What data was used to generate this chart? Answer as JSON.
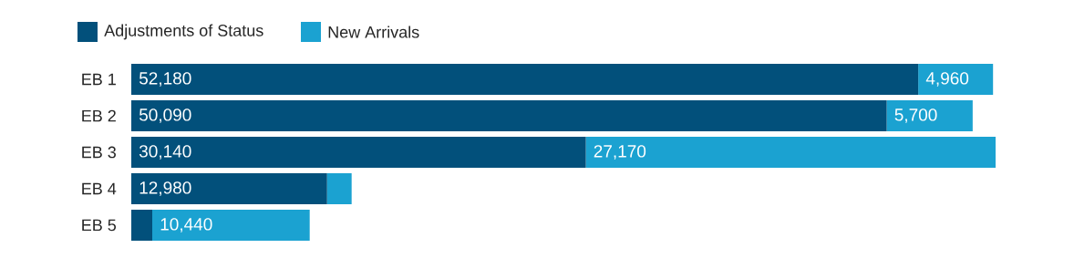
{
  "chart_data": {
    "type": "bar",
    "orientation": "horizontal",
    "stacked": true,
    "legend": "top left",
    "categories": [
      "EB 1",
      "EB 2",
      "EB 3",
      "EB 4",
      "EB 5"
    ],
    "series": [
      {
        "name": "Adjustments of Status",
        "color": "#02507b",
        "values": [
          52180,
          50090,
          30140,
          12980,
          1390
        ],
        "value_labels": [
          "52,180",
          "50,090",
          "30,140",
          "12,980",
          null
        ]
      },
      {
        "name": "New Arrivals",
        "color": "#1ba2d1",
        "values": [
          4960,
          5700,
          27170,
          1630,
          10440
        ],
        "value_labels": [
          "4,960",
          "5,700",
          "27,170",
          null,
          "10,440"
        ]
      }
    ]
  }
}
